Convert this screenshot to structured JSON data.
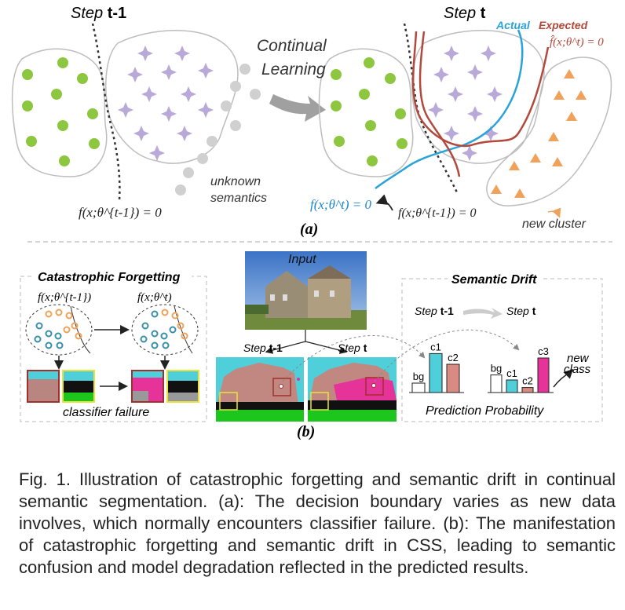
{
  "panel_a": {
    "step_prev_word": "Step",
    "step_prev_num": "t-1",
    "step_cur_word": "Step",
    "step_cur_num": "t",
    "continual_line1": "Continual",
    "continual_line2": "Learning",
    "unknown_line1": "unknown",
    "unknown_line2": "semantics",
    "boundary_prev": "f(x;θ^{t-1}) = 0",
    "boundary_actual": "f(x;θ^t) = 0",
    "boundary_prev_right": "f(x;θ^{t-1}) = 0",
    "boundary_expected": "f̂(x;θ^t) = 0",
    "actual_label": "Actual",
    "expected_label": "Expected",
    "new_cluster": "new cluster",
    "label": "(a)"
  },
  "panel_b": {
    "cf_title": "Catastrophic Forgetting",
    "cf_formula_prev": "f(x;θ^{t-1})",
    "cf_formula_cur": "f(x;θ^t)",
    "classifier_failure": "classifier failure",
    "input_label": "Input",
    "step_prev_word": "Step",
    "step_prev_num": "t-1",
    "step_cur_word": "Step",
    "step_cur_num": "t",
    "sd_title": "Semantic Drift",
    "sd_step_prev_word": "Step",
    "sd_step_prev_num": "t-1",
    "sd_step_cur_word": "Step",
    "sd_step_cur_num": "t",
    "new_class_line1": "new",
    "new_class_line2": "class",
    "prediction_probability": "Prediction Probability",
    "label": "(b)"
  },
  "colors": {
    "green": "#8dc63f",
    "purple": "#b9a9d8",
    "gray_dot": "#d0d0d0",
    "actual_blue": "#29a3d9",
    "expected_red": "#b2493c",
    "orange": "#f0a25a",
    "cyan_bar": "#4fcfd9",
    "salmon_bar": "#d98a82",
    "magenta_bar": "#e63399"
  },
  "chart_data": [
    {
      "type": "bar",
      "title": "Step t-1",
      "categories": [
        "bg",
        "c1",
        "c2"
      ],
      "values": [
        0.15,
        0.62,
        0.45
      ]
    },
    {
      "type": "bar",
      "title": "Step t",
      "categories": [
        "bg",
        "c1",
        "c2",
        "c3"
      ],
      "values": [
        0.28,
        0.2,
        0.08,
        0.55
      ]
    }
  ],
  "caption": "Fig. 1. Illustration of catastrophic forgetting and semantic drift in continual semantic segmentation. (a): The decision boundary varies as new data involves, which normally encounters classifier failure. (b): The manifestation of catastrophic forgetting and semantic drift in CSS, leading to semantic confusion and model degradation reflected in the predicted results."
}
